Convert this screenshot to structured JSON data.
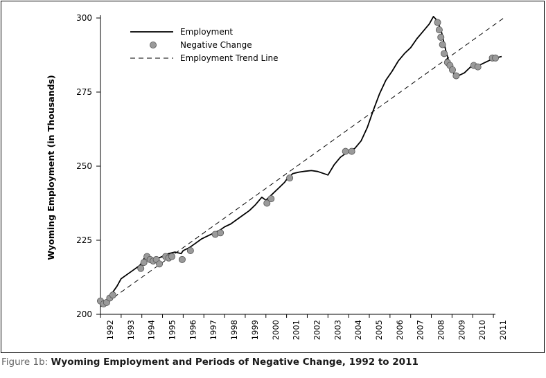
{
  "caption": {
    "prefix": "Figure 1b:",
    "text": "Wyoming Employment and Periods of Negative Change, 1992 to 2011"
  },
  "chart_data": {
    "type": "line",
    "title": "",
    "xlabel": "",
    "ylabel": "Wyoming Employment (in Thousands)",
    "xlim": [
      1992,
      2011.5
    ],
    "ylim": [
      200,
      300
    ],
    "yticks": [
      200,
      225,
      250,
      275,
      300
    ],
    "xticks": [
      1992,
      1993,
      1994,
      1995,
      1996,
      1997,
      1998,
      1999,
      2000,
      2001,
      2002,
      2003,
      2004,
      2005,
      2006,
      2007,
      2008,
      2009,
      2010,
      2011
    ],
    "grid": false,
    "legend": {
      "placement": "top-left",
      "entries": [
        {
          "label": "Employment",
          "style": "solid-line"
        },
        {
          "label": "Negative Change",
          "style": "gray-circle"
        },
        {
          "label": "Employment Trend Line",
          "style": "dashed-line"
        }
      ]
    },
    "colors": {
      "line": "#000000",
      "marker_fill": "#9a9a9a",
      "marker_stroke": "#555555"
    },
    "series": [
      {
        "name": "Employment",
        "x": [
          1992.0,
          1992.2,
          1992.4,
          1992.6,
          1992.8,
          1993.0,
          1993.3,
          1993.6,
          1993.9,
          1994.0,
          1994.2,
          1994.4,
          1994.6,
          1994.8,
          1995.0,
          1995.3,
          1995.6,
          1995.9,
          1996.0,
          1996.3,
          1996.6,
          1996.9,
          1997.2,
          1997.5,
          1997.8,
          1998.0,
          1998.3,
          1998.6,
          1998.9,
          1999.2,
          1999.5,
          1999.8,
          2000.0,
          2000.3,
          2000.6,
          2000.9,
          2001.0,
          2001.3,
          2001.6,
          2001.9,
          2002.2,
          2002.5,
          2002.8,
          2003.0,
          2003.3,
          2003.6,
          2003.9,
          2004.0,
          2004.3,
          2004.6,
          2004.9,
          2005.2,
          2005.5,
          2005.8,
          2006.1,
          2006.4,
          2006.7,
          2007.0,
          2007.3,
          2007.6,
          2007.9,
          2008.1,
          2008.3,
          2008.5,
          2008.7,
          2008.9,
          2009.1,
          2009.3,
          2009.6,
          2009.9,
          2010.1,
          2010.3,
          2010.6,
          2010.9,
          2011.1,
          2011.4
        ],
        "values": [
          204.5,
          203.8,
          206.0,
          207.5,
          209.5,
          212.0,
          213.5,
          215.0,
          216.5,
          217.5,
          220.0,
          219.5,
          218.0,
          219.0,
          219.5,
          220.5,
          221.0,
          220.5,
          221.5,
          222.5,
          224.0,
          225.5,
          226.5,
          227.5,
          228.5,
          229.5,
          230.5,
          232.0,
          233.5,
          235.0,
          237.0,
          239.5,
          238.5,
          240.5,
          242.5,
          244.5,
          245.5,
          247.5,
          248.0,
          248.3,
          248.5,
          248.2,
          247.5,
          247.0,
          250.5,
          253.0,
          254.5,
          255.0,
          256.0,
          258.5,
          263.0,
          269.0,
          274.5,
          279.0,
          282.0,
          285.5,
          288.0,
          290.0,
          293.0,
          295.5,
          298.0,
          300.5,
          299.0,
          295.0,
          289.0,
          284.0,
          281.0,
          280.5,
          281.5,
          283.5,
          284.5,
          284.0,
          285.0,
          286.0,
          286.5,
          287.0
        ]
      },
      {
        "name": "Negative Change",
        "x": [
          1992.0,
          1992.15,
          1992.3,
          1992.45,
          1992.6,
          1993.95,
          1994.1,
          1994.25,
          1994.4,
          1994.55,
          1994.7,
          1994.85,
          1995.15,
          1995.3,
          1995.45,
          1995.95,
          1996.35,
          1997.55,
          1997.8,
          2000.05,
          2000.25,
          2001.15,
          2003.85,
          2004.15,
          2008.3,
          2008.38,
          2008.46,
          2008.54,
          2008.62,
          2008.78,
          2008.9,
          2009.02,
          2009.2,
          2010.05,
          2010.25,
          2010.95,
          2011.1
        ],
        "values": [
          204.5,
          203.5,
          204.0,
          205.5,
          206.5,
          215.5,
          217.5,
          219.5,
          218.5,
          218.0,
          218.5,
          217.0,
          219.5,
          219.0,
          219.5,
          218.5,
          221.5,
          227.0,
          227.5,
          237.5,
          239.0,
          246.0,
          255.0,
          255.0,
          298.5,
          296.0,
          293.5,
          291.0,
          288.0,
          285.0,
          284.0,
          282.5,
          280.5,
          284.0,
          283.5,
          286.5,
          286.5
        ]
      },
      {
        "name": "Employment Trend Line",
        "x": [
          1992.0,
          2011.5
        ],
        "values": [
          202.5,
          300.0
        ]
      }
    ]
  }
}
